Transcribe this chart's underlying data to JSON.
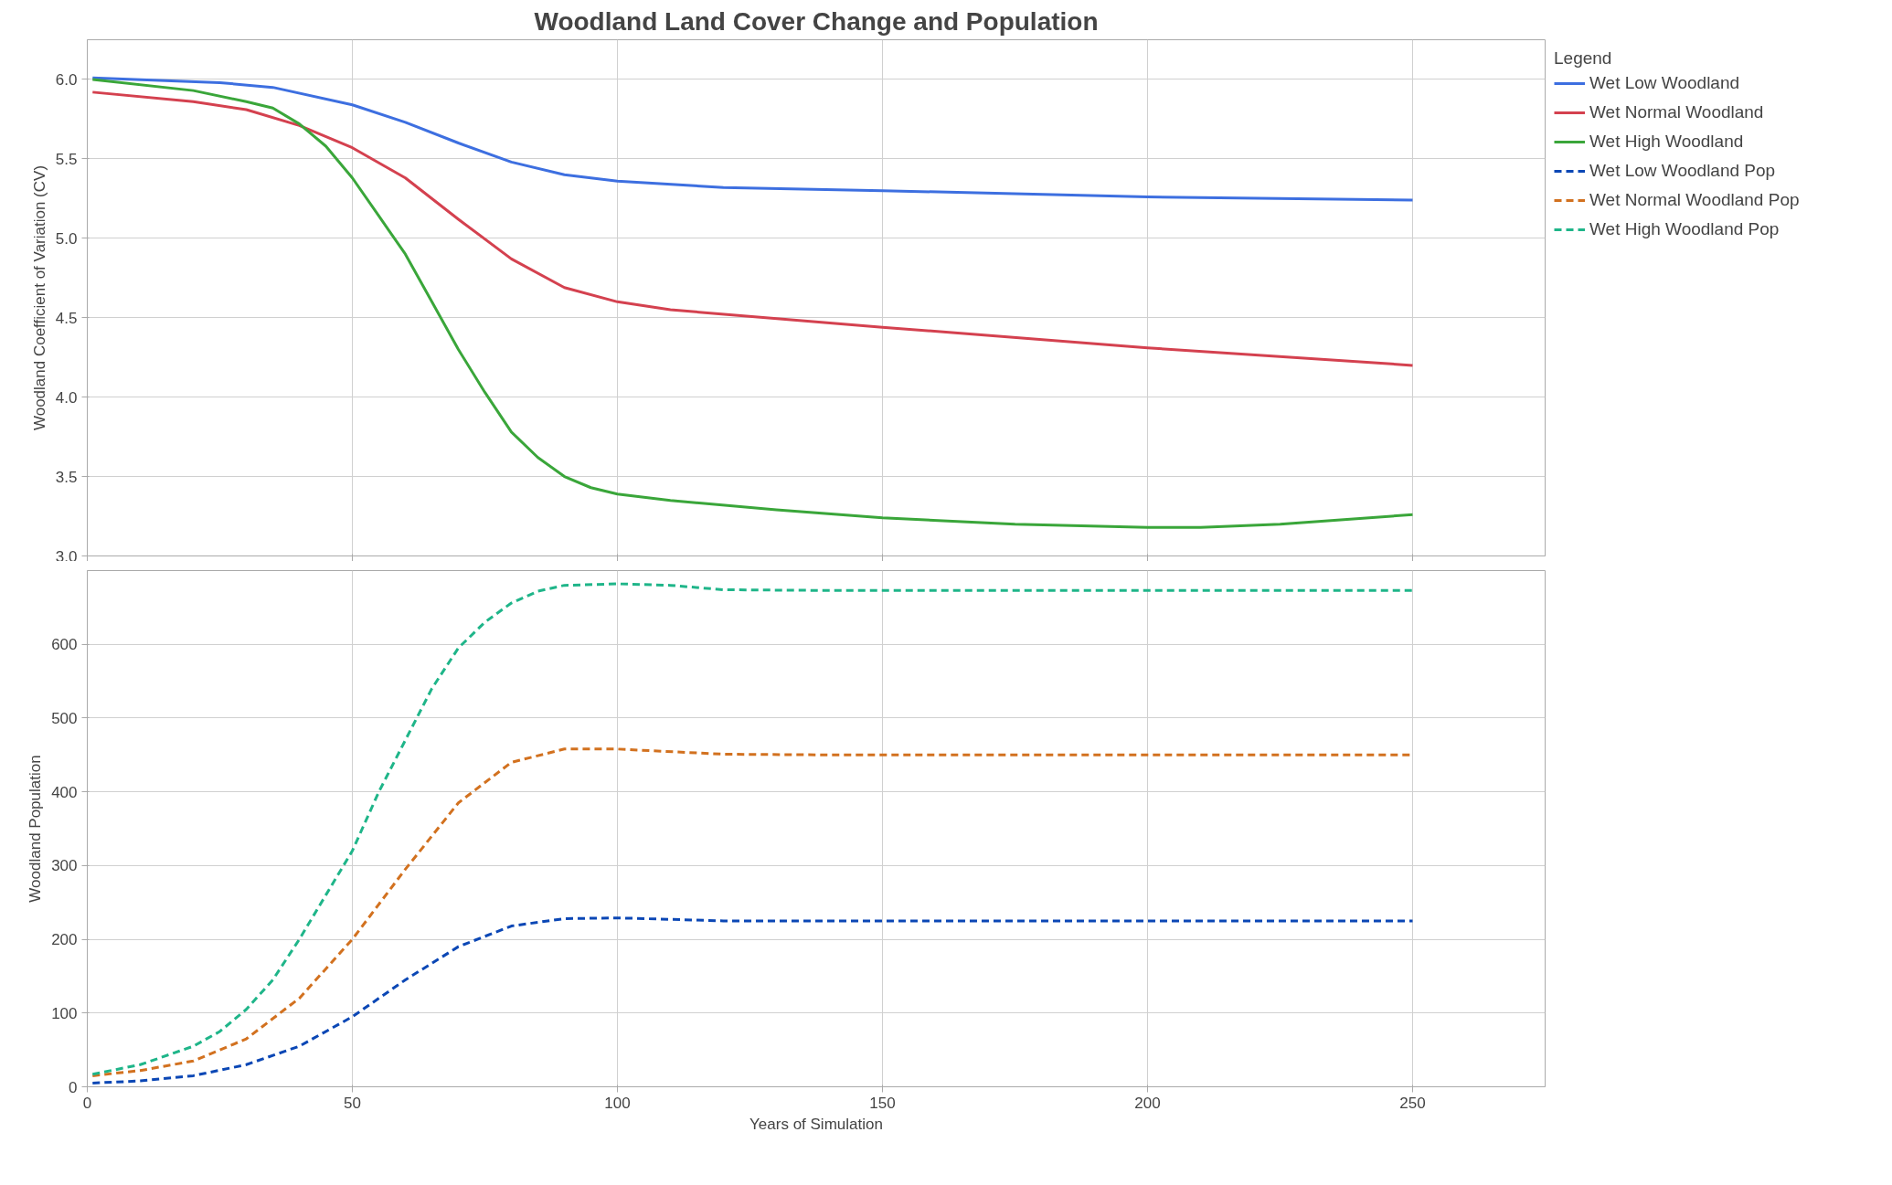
{
  "chart_data": [
    {
      "type": "line",
      "title": "Woodland Land Cover Change and Population",
      "ylabel": "Woodland Coefficient of Variation (CV)",
      "legend_title": "Legend",
      "legend": "right",
      "grid": true,
      "line_style": "solid",
      "marker": "none",
      "tick_labels": "y",
      "xlim": [
        0,
        275
      ],
      "xticks": [
        0,
        50,
        100,
        150,
        200,
        250
      ],
      "ylim": [
        3.0,
        6.25
      ],
      "yticks": [
        {
          "value": 3.0,
          "label": "3.0"
        },
        3.5,
        {
          "value": 4.0,
          "label": "4.0"
        },
        4.5,
        {
          "value": 5.0,
          "label": "5.0"
        },
        5.5,
        {
          "value": 6.0,
          "label": "6.0"
        }
      ],
      "series": [
        {
          "name": "Wet Low Woodland",
          "color": "#3d6fe0",
          "x": [
            1,
            25,
            35,
            50,
            60,
            70,
            80,
            90,
            100,
            120,
            150,
            200,
            250
          ],
          "values": [
            6.01,
            5.98,
            5.95,
            5.84,
            5.73,
            5.6,
            5.48,
            5.4,
            5.36,
            5.32,
            5.3,
            5.26,
            5.24
          ]
        },
        {
          "name": "Wet Normal Woodland",
          "color": "#d4414f",
          "x": [
            1,
            20,
            30,
            40,
            50,
            60,
            70,
            80,
            90,
            100,
            110,
            150,
            200,
            250
          ],
          "values": [
            5.92,
            5.86,
            5.81,
            5.71,
            5.57,
            5.38,
            5.12,
            4.87,
            4.69,
            4.6,
            4.55,
            4.44,
            4.31,
            4.2
          ]
        },
        {
          "name": "Wet High Woodland",
          "color": "#3aa63a",
          "x": [
            1,
            20,
            30,
            35,
            40,
            45,
            50,
            55,
            60,
            65,
            70,
            75,
            80,
            85,
            90,
            95,
            100,
            110,
            130,
            150,
            175,
            200,
            210,
            225,
            250
          ],
          "values": [
            6.0,
            5.93,
            5.86,
            5.82,
            5.72,
            5.58,
            5.38,
            5.14,
            4.9,
            4.6,
            4.3,
            4.03,
            3.78,
            3.62,
            3.5,
            3.43,
            3.39,
            3.35,
            3.29,
            3.24,
            3.2,
            3.18,
            3.18,
            3.2,
            3.26
          ]
        }
      ]
    },
    {
      "type": "line",
      "xlabel": "Years of Simulation",
      "ylabel": "Woodland Population",
      "legend": "right",
      "grid": true,
      "line_style": "dashed",
      "marker": "none",
      "xlim": [
        0,
        275
      ],
      "xticks": [
        0,
        50,
        100,
        150,
        200,
        250
      ],
      "ylim": [
        0,
        700
      ],
      "yticks": [
        0,
        100,
        200,
        300,
        400,
        500,
        600
      ],
      "series": [
        {
          "name": "Wet Low Woodland Pop",
          "color": "#0b47b5",
          "x": [
            1,
            10,
            20,
            30,
            40,
            50,
            60,
            70,
            80,
            90,
            100,
            120,
            150,
            250
          ],
          "values": [
            5,
            8,
            15,
            30,
            55,
            95,
            145,
            190,
            218,
            228,
            229,
            225,
            225,
            225
          ]
        },
        {
          "name": "Wet Normal Woodland Pop",
          "color": "#d2711f",
          "x": [
            1,
            10,
            20,
            30,
            40,
            50,
            60,
            70,
            80,
            90,
            100,
            120,
            140,
            250
          ],
          "values": [
            15,
            22,
            35,
            65,
            120,
            200,
            295,
            385,
            440,
            458,
            458,
            451,
            450,
            450
          ]
        },
        {
          "name": "Wet High Woodland Pop",
          "color": "#1fb589",
          "x": [
            1,
            10,
            20,
            25,
            30,
            35,
            40,
            45,
            50,
            55,
            60,
            65,
            70,
            75,
            80,
            85,
            90,
            100,
            110,
            120,
            140,
            250
          ],
          "values": [
            17,
            30,
            55,
            75,
            105,
            145,
            200,
            260,
            320,
            400,
            470,
            540,
            595,
            630,
            656,
            672,
            680,
            682,
            680,
            674,
            673,
            673
          ]
        }
      ]
    }
  ]
}
